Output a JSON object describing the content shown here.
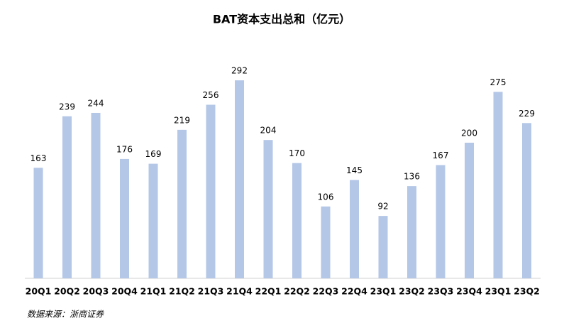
{
  "chart_data": {
    "type": "bar",
    "title": "BAT资本支出总和（亿元）",
    "categories": [
      "20Q1",
      "20Q2",
      "20Q3",
      "20Q4",
      "21Q1",
      "21Q2",
      "21Q3",
      "21Q4",
      "22Q1",
      "22Q2",
      "22Q3",
      "22Q4",
      "23Q1",
      "23Q2",
      "23Q3",
      "23Q4",
      "23Q1",
      "23Q2"
    ],
    "values": [
      163,
      239,
      244,
      176,
      169,
      219,
      256,
      292,
      204,
      170,
      106,
      145,
      92,
      136,
      167,
      200,
      275,
      229
    ],
    "color": "#b4c7e7",
    "source": "数据来源：浙商证券"
  }
}
